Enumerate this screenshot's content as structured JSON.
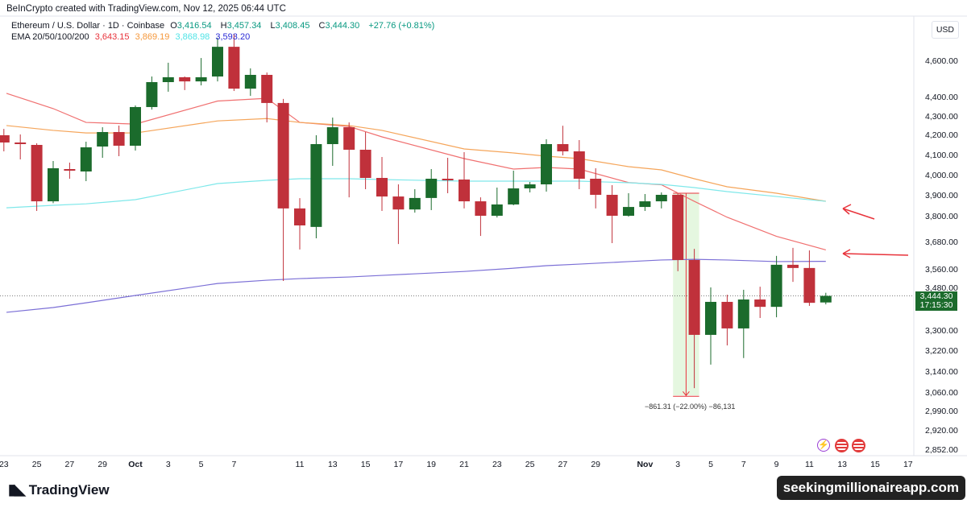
{
  "header": {
    "credit": "BeInCrypto created with TradingView.com, Nov 12, 2025 06:44 UTC"
  },
  "legend": {
    "symbol": "Ethereum / U.S. Dollar · 1D · Coinbase",
    "o_label": "O",
    "o": "3,416.54",
    "h_label": "H",
    "h": "3,457.34",
    "l_label": "L",
    "l": "3,408.45",
    "c_label": "C",
    "c": "3,444.30",
    "change": "+27.76 (+0.81%)",
    "ema_label": "EMA 20/50/100/200",
    "ema20": "3,643.15",
    "ema50": "3,869.19",
    "ema100": "3,868.98",
    "ema200": "3,593.20"
  },
  "axis": {
    "currency": "USD",
    "last_price": "3,444.30",
    "countdown": "17:15:30"
  },
  "measure_label": "−861.31 (−22.00%) −86,131",
  "footer": {
    "logo": "TradingView",
    "watermark": "seekingmillionaireapp.com"
  },
  "colors": {
    "up": "#1b6b2c",
    "down": "#c0313b",
    "ema20": "#f07070",
    "ema50": "#f5a55a",
    "ema100": "#7fe8ea",
    "ema200": "#7b6fd6",
    "annotation": "#e8333b"
  },
  "icons": [
    "lightning-icon",
    "us-flag-icon",
    "us-flag-icon"
  ],
  "chart_data": {
    "type": "candlestick",
    "title": "Ethereum / U.S. Dollar · 1D · Coinbase",
    "y_scale": "price (USD)",
    "y_ticks": [
      4600,
      4400,
      4300,
      4200,
      4100,
      4000,
      3900,
      3800,
      3680,
      3560,
      3480,
      3300,
      3220,
      3140,
      3060,
      2990,
      2920,
      2852
    ],
    "y_tick_labels": [
      "4,600.00",
      "4,400.00",
      "4,300.00",
      "4,200.00",
      "4,100.00",
      "4,000.00",
      "3,900.00",
      "3,800.00",
      "3,680.00",
      "3,560.00",
      "3,480.00",
      "3,300.00",
      "3,220.00",
      "3,140.00",
      "3,060.00",
      "2,990.00",
      "2,920.00",
      "2,852.00"
    ],
    "x_ticks": [
      {
        "day": -8,
        "label": "23"
      },
      {
        "day": -6,
        "label": "25"
      },
      {
        "day": -4,
        "label": "27"
      },
      {
        "day": -2,
        "label": "29"
      },
      {
        "day": 0,
        "label": "Oct"
      },
      {
        "day": 2,
        "label": "3"
      },
      {
        "day": 4,
        "label": "5"
      },
      {
        "day": 6,
        "label": "7"
      },
      {
        "day": 10,
        "label": "11"
      },
      {
        "day": 12,
        "label": "13"
      },
      {
        "day": 14,
        "label": "15"
      },
      {
        "day": 16,
        "label": "17"
      },
      {
        "day": 18,
        "label": "19"
      },
      {
        "day": 20,
        "label": "21"
      },
      {
        "day": 22,
        "label": "23"
      },
      {
        "day": 24,
        "label": "25"
      },
      {
        "day": 26,
        "label": "27"
      },
      {
        "day": 28,
        "label": "29"
      },
      {
        "day": 31,
        "label": "Nov"
      },
      {
        "day": 33,
        "label": "3"
      },
      {
        "day": 35,
        "label": "5"
      },
      {
        "day": 37,
        "label": "7"
      },
      {
        "day": 39,
        "label": "9"
      },
      {
        "day": 41,
        "label": "11"
      },
      {
        "day": 43,
        "label": "13"
      },
      {
        "day": 45,
        "label": "15"
      },
      {
        "day": 47,
        "label": "17"
      }
    ],
    "x_unit": "day offset from Oct 1, 2025",
    "candles": [
      [
        -8,
        4196,
        4230,
        4116,
        4160
      ],
      [
        -7,
        4160,
        4200,
        4076,
        4152
      ],
      [
        -6,
        4148,
        4156,
        3823,
        3869
      ],
      [
        -5,
        3869,
        4068,
        3860,
        4032
      ],
      [
        -4,
        4028,
        4060,
        3980,
        4020
      ],
      [
        -3,
        4016,
        4164,
        3968,
        4136
      ],
      [
        -2,
        4140,
        4239,
        4084,
        4213
      ],
      [
        -1,
        4213,
        4248,
        4092,
        4144
      ],
      [
        0,
        4144,
        4354,
        4120,
        4346
      ],
      [
        1,
        4346,
        4511,
        4333,
        4480
      ],
      [
        2,
        4480,
        4587,
        4427,
        4507
      ],
      [
        3,
        4507,
        4511,
        4436,
        4484
      ],
      [
        4,
        4484,
        4613,
        4462,
        4507
      ],
      [
        5,
        4511,
        4725,
        4484,
        4675
      ],
      [
        6,
        4675,
        4745,
        4431,
        4444
      ],
      [
        7,
        4444,
        4556,
        4404,
        4520
      ],
      [
        8,
        4520,
        4533,
        4265,
        4367
      ],
      [
        9,
        4367,
        4388,
        3508,
        3835
      ],
      [
        10,
        3835,
        3884,
        3645,
        3755
      ],
      [
        11,
        3748,
        4196,
        3695,
        4152
      ],
      [
        12,
        4152,
        4291,
        4044,
        4239
      ],
      [
        13,
        4239,
        4265,
        3888,
        4124
      ],
      [
        14,
        4124,
        4213,
        3928,
        3984
      ],
      [
        15,
        3984,
        4088,
        3823,
        3892
      ],
      [
        16,
        3892,
        3952,
        3669,
        3830
      ],
      [
        17,
        3830,
        3928,
        3815,
        3885
      ],
      [
        18,
        3885,
        4028,
        3827,
        3980
      ],
      [
        19,
        3980,
        4084,
        3908,
        3976
      ],
      [
        20,
        3976,
        4112,
        3835,
        3869
      ],
      [
        21,
        3869,
        3888,
        3706,
        3800
      ],
      [
        22,
        3800,
        3936,
        3792,
        3854
      ],
      [
        23,
        3854,
        4020,
        3850,
        3932
      ],
      [
        24,
        3932,
        3964,
        3912,
        3952
      ],
      [
        25,
        3952,
        4176,
        3916,
        4152
      ],
      [
        26,
        4152,
        4247,
        4096,
        4116
      ],
      [
        27,
        4116,
        4172,
        3928,
        3980
      ],
      [
        28,
        3980,
        4032,
        3835,
        3900
      ],
      [
        29,
        3900,
        3948,
        3673,
        3800
      ],
      [
        30,
        3800,
        3908,
        3796,
        3842
      ],
      [
        31,
        3842,
        3904,
        3823,
        3869
      ],
      [
        32,
        3869,
        3912,
        3835,
        3900
      ],
      [
        33,
        3900,
        3908,
        3550,
        3599
      ],
      [
        34,
        3599,
        3648,
        3075,
        3281
      ],
      [
        35,
        3281,
        3480,
        3165,
        3419
      ],
      [
        36,
        3419,
        3449,
        3239,
        3307
      ],
      [
        37,
        3307,
        3470,
        3190,
        3429
      ],
      [
        38,
        3429,
        3483,
        3351,
        3398
      ],
      [
        39,
        3398,
        3617,
        3354,
        3578
      ],
      [
        40,
        3578,
        3652,
        3504,
        3564
      ],
      [
        41,
        3564,
        3641,
        3402,
        3415
      ],
      [
        42,
        3416.54,
        3457.34,
        3408.45,
        3444.3
      ]
    ],
    "candle_fields": [
      "day",
      "open",
      "high",
      "low",
      "close"
    ],
    "series": [
      {
        "name": "EMA 20",
        "days": [
          -8,
          -5,
          -3,
          0,
          5,
          8,
          10,
          13,
          15,
          20,
          23,
          25,
          27,
          30,
          32,
          34,
          36,
          39,
          42
        ],
        "values": [
          4418,
          4338,
          4265,
          4256,
          4377,
          4391,
          4265,
          4243,
          4188,
          4080,
          4028,
          4036,
          4028,
          3961,
          3950,
          3869,
          3793,
          3704,
          3643.15
        ]
      },
      {
        "name": "EMA 50",
        "days": [
          -8,
          -5,
          -3,
          0,
          5,
          8,
          10,
          13,
          15,
          20,
          23,
          25,
          27,
          30,
          32,
          34,
          36,
          39,
          42
        ],
        "values": [
          4248,
          4222,
          4208,
          4208,
          4273,
          4286,
          4265,
          4248,
          4222,
          4128,
          4108,
          4092,
          4080,
          4040,
          4024,
          3980,
          3940,
          3908,
          3869.19
        ]
      },
      {
        "name": "EMA 100",
        "days": [
          -8,
          -5,
          -3,
          0,
          5,
          8,
          10,
          13,
          15,
          20,
          23,
          25,
          27,
          30,
          32,
          34,
          36,
          39,
          42
        ],
        "values": [
          3838,
          3850,
          3857,
          3877,
          3956,
          3972,
          3980,
          3980,
          3976,
          3968,
          3968,
          3968,
          3968,
          3960,
          3952,
          3936,
          3916,
          3892,
          3868.98
        ]
      },
      {
        "name": "EMA 200",
        "days": [
          -8,
          -5,
          -3,
          0,
          5,
          8,
          10,
          13,
          15,
          20,
          23,
          25,
          27,
          30,
          32,
          34,
          36,
          39,
          42
        ],
        "values": [
          3375,
          3395,
          3415,
          3446,
          3497,
          3511,
          3518,
          3525,
          3532,
          3549,
          3563,
          3574,
          3581,
          3592,
          3599,
          3602,
          3599,
          3592,
          3593.2
        ]
      }
    ],
    "measurement": {
      "from_day": 33,
      "to_day": 34,
      "from_price": 3908,
      "to_price": 3047,
      "change": -861.31,
      "change_pct": -22.0
    },
    "last_price": 3444.3,
    "grid": false
  }
}
